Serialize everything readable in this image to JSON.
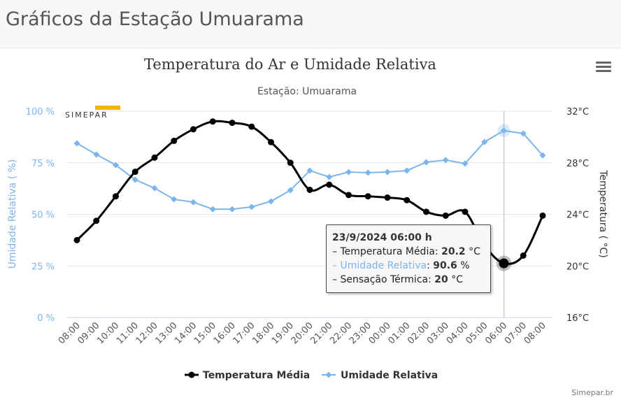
{
  "page_title": "Gráficos da Estação Umuarama",
  "menu_icon": "hamburger-menu-icon",
  "credits": "Simepar.br",
  "logo_text": "SIMEPAR",
  "colors": {
    "temperature": "#000000",
    "humidity": "#7cb5ec",
    "logo": "#f5b400"
  },
  "tooltip": {
    "header": "23/9/2024 06:00 h",
    "rows": [
      {
        "prefix": "– ",
        "label": "Temperatura Média",
        "value": "20.2",
        "unit": "°C"
      },
      {
        "prefix": "– ",
        "label": "Umidade Relativa",
        "value": "90.6",
        "unit": "%"
      },
      {
        "prefix": "– ",
        "label": "Sensação Térmica",
        "value": "20",
        "unit": "°C"
      }
    ]
  },
  "chart_data": {
    "type": "line",
    "title": "Temperatura do Ar e Umidade Relativa",
    "subtitle": "Estação: Umuarama",
    "categories": [
      "08:00",
      "09:00",
      "10:00",
      "11:00",
      "12:00",
      "13:00",
      "14:00",
      "15:00",
      "16:00",
      "17:00",
      "18:00",
      "19:00",
      "20:00",
      "21:00",
      "22:00",
      "23:00",
      "00:00",
      "01:00",
      "02:00",
      "03:00",
      "04:00",
      "05:00",
      "06:00",
      "07:00",
      "08:00"
    ],
    "y_left": {
      "label": "Umidade Relativa ( %)",
      "min": 0,
      "max": 100,
      "ticks": [
        "0 %",
        "25 %",
        "50 %",
        "75 %",
        "100 %"
      ],
      "tick_values": [
        0,
        25,
        50,
        75,
        100
      ]
    },
    "y_right": {
      "label": "Temperatura ( °C)",
      "min": 16,
      "max": 32,
      "ticks": [
        "16°C",
        "20°C",
        "24°C",
        "28°C",
        "32°C"
      ],
      "tick_values": [
        16,
        20,
        24,
        28,
        32
      ]
    },
    "grid": true,
    "legend": "bottom",
    "highlighted_index": 22,
    "series": [
      {
        "name": "Temperatura Média",
        "axis": "right",
        "marker": "circle",
        "values": [
          22.0,
          23.5,
          25.4,
          27.3,
          28.4,
          29.7,
          30.6,
          31.2,
          31.1,
          30.8,
          29.6,
          28.0,
          25.9,
          26.3,
          25.5,
          25.4,
          25.3,
          25.1,
          24.2,
          23.9,
          24.2,
          21.6,
          20.2,
          20.8,
          23.9
        ]
      },
      {
        "name": "Umidade Relativa",
        "axis": "left",
        "marker": "diamond",
        "values": [
          84.4,
          79.0,
          73.9,
          66.8,
          62.7,
          57.3,
          55.9,
          52.5,
          52.5,
          53.6,
          56.3,
          61.7,
          71.2,
          68.1,
          70.5,
          70.2,
          70.5,
          71.2,
          75.3,
          76.3,
          74.6,
          85.1,
          90.6,
          89.2,
          78.6
        ]
      }
    ]
  }
}
